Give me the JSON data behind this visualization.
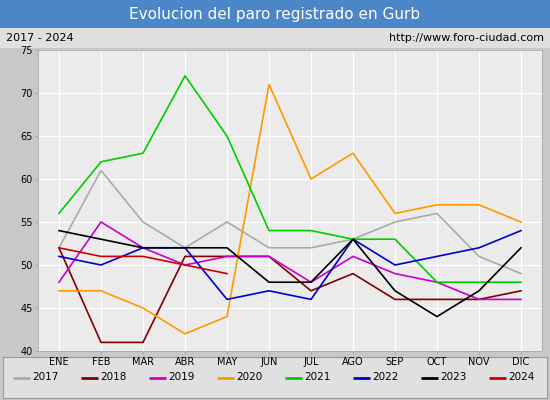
{
  "title": "Evolucion del paro registrado en Gurb",
  "subtitle_left": "2017 - 2024",
  "subtitle_right": "http://www.foro-ciudad.com",
  "x_labels": [
    "ENE",
    "FEB",
    "MAR",
    "ABR",
    "MAY",
    "JUN",
    "JUL",
    "AGO",
    "SEP",
    "OCT",
    "NOV",
    "DIC"
  ],
  "ylim": [
    40,
    75
  ],
  "yticks": [
    40,
    45,
    50,
    55,
    60,
    65,
    70,
    75
  ],
  "series": {
    "2017": {
      "color": "#aaaaaa",
      "values": [
        52,
        61,
        55,
        52,
        55,
        52,
        52,
        53,
        55,
        56,
        51,
        49
      ]
    },
    "2018": {
      "color": "#800000",
      "values": [
        52,
        41,
        41,
        51,
        51,
        51,
        47,
        49,
        46,
        46,
        46,
        47
      ]
    },
    "2019": {
      "color": "#cc00cc",
      "values": [
        48,
        55,
        52,
        50,
        51,
        51,
        48,
        51,
        49,
        48,
        46,
        46
      ]
    },
    "2020": {
      "color": "#ff9900",
      "values": [
        47,
        47,
        45,
        42,
        44,
        71,
        60,
        63,
        56,
        57,
        57,
        55
      ]
    },
    "2021": {
      "color": "#00cc00",
      "values": [
        56,
        62,
        63,
        72,
        65,
        54,
        54,
        53,
        53,
        48,
        48,
        48
      ]
    },
    "2022": {
      "color": "#0000cc",
      "values": [
        51,
        50,
        52,
        52,
        46,
        47,
        46,
        53,
        50,
        51,
        52,
        54
      ]
    },
    "2023": {
      "color": "#000000",
      "values": [
        54,
        53,
        52,
        52,
        52,
        48,
        48,
        53,
        47,
        44,
        47,
        52
      ]
    },
    "2024": {
      "color": "#cc0000",
      "values": [
        52,
        51,
        51,
        50,
        49,
        null,
        null,
        null,
        null,
        null,
        null,
        null
      ]
    }
  },
  "title_bg_color": "#4a86c8",
  "title_font_color": "#ffffff",
  "subtitle_bg_color": "#e0e0e0",
  "plot_bg_color": "#ebebeb",
  "grid_color": "#ffffff",
  "legend_bg_color": "#e0e0e0",
  "outer_bg_color": "#c8c8c8"
}
